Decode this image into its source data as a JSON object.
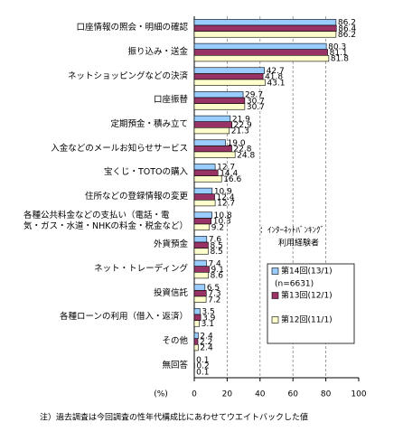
{
  "chart_data": {
    "type": "hbar",
    "categories": [
      "口座情報の照会・明細の確認",
      "振り込み・送金",
      "ネットショッピングなどの決済",
      "口座振替",
      "定期預金・積み立て",
      "入金などのメールお知らせサービス",
      "宝くじ・TOTOの購入",
      "住所などの登録情報の変更",
      "各種公共料金などの支払い（電話・電\n気・ガス・水道・NHKの料金・税金など）",
      "外貨預金",
      "ネット・トレーディング",
      "投資信託",
      "各種ローンの利用（借入・返済）",
      "その他",
      "無回答"
    ],
    "series": [
      {
        "name": "第14回(13/1)",
        "color": "#99ccff",
        "values": [
          86.2,
          80.3,
          42.7,
          29.7,
          21.9,
          19.0,
          12.7,
          10.9,
          10.8,
          7.6,
          7.4,
          6.5,
          3.5,
          2.4,
          0.1
        ],
        "value_labels": [
          "86.2",
          "80.3",
          "42.7",
          "29.7",
          "21.9",
          "19.0",
          "12.7",
          "10.9",
          "10.8",
          "7.6",
          "7.4",
          "6.5",
          "3.5",
          "2.4",
          "0.1"
        ]
      },
      {
        "name": "第13回(12/1)",
        "color": "#993366",
        "values": [
          86.4,
          81.1,
          41.8,
          30.7,
          22.9,
          22.8,
          14.4,
          12.4,
          10.3,
          8.5,
          9.1,
          7.3,
          3.9,
          2.2,
          0.2
        ],
        "value_labels": [
          "86.4",
          "81.1",
          "41.8",
          "30.7",
          "22.9",
          "22.8",
          "14.4",
          "12.4",
          "10.3",
          "8.5",
          "9.1",
          "7.3",
          "3.9",
          "2.2",
          "0.2"
        ]
      },
      {
        "name": "第12回(11/1)",
        "color": "#ffffcc",
        "values": [
          86.2,
          81.8,
          43.1,
          30.7,
          21.3,
          24.8,
          16.6,
          12.7,
          9.2,
          8.5,
          8.6,
          7.2,
          3.1,
          2.4,
          0.1
        ],
        "value_labels": [
          "86.2",
          "81.8",
          "43.1",
          "30.7",
          "21.3",
          "24.8",
          "16.6",
          "12.7",
          "9.2",
          "8.5",
          "8.6",
          "7.2",
          "3.1",
          "2.4",
          "0.1"
        ]
      }
    ],
    "sample_note": "(n=6631)",
    "legend_title": [
      "：ｲﾝﾀｰﾈｯﾄﾊﾞﾝｷﾝｸﾞ",
      "利用経験者"
    ],
    "xlabel": "(%)",
    "xlim": [
      0,
      100
    ],
    "xticks": [
      0,
      20,
      40,
      60,
      80,
      100
    ],
    "grid": true,
    "footnote": "注）過去調査は今回調査の性年代構成比にあわせてウエイトバックした値"
  }
}
